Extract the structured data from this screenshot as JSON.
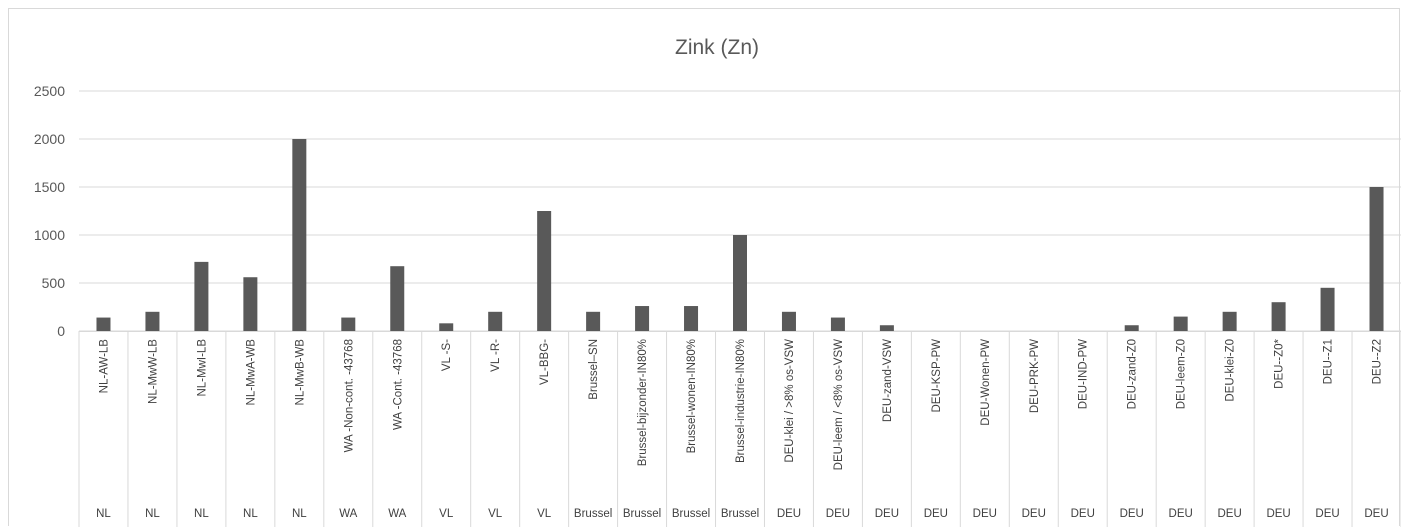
{
  "chart_data": {
    "type": "bar",
    "title": "Zink (Zn)",
    "xlabel": "",
    "ylabel": "",
    "ylim": [
      0,
      2500
    ],
    "yticks": [
      "0",
      "500",
      "1000",
      "1500",
      "2000",
      "2500"
    ],
    "grid": true,
    "legend": "none",
    "bar_color": "#595959",
    "gridline_color": "#d9d9d9",
    "categories": [
      "NL-AW-LB",
      "NL-MwW-LB",
      "NL-MwI-LB",
      "NL-MwA-WB",
      "NL-MwB-WB",
      "WA -Non-cont. -43768",
      "WA -Cont. -43768",
      "VL -S-",
      "VL -R-",
      "VL-BBG-",
      "Brussel–SN",
      "Brussel-bijzonder-IN80%",
      "Brussel-wonen-IN80%",
      "Brussel-industrie-IN80%",
      "DEU-klei / >8% os-VSW",
      "DEU-leem / <8% os-VSW",
      "DEU-zand-VSW",
      "DEU-KSP-PW",
      "DEU-Wonen-PW",
      "DEU-PRK-PW",
      "DEU-IND-PW",
      "DEU-zand-Z0",
      "DEU-leem-Z0",
      "DEU-klei-Z0",
      "DEU--Z0*",
      "DEU--Z1",
      "DEU--Z2"
    ],
    "groups": [
      "NL",
      "NL",
      "NL",
      "NL",
      "NL",
      "WA",
      "WA",
      "VL",
      "VL",
      "VL",
      "Brussel",
      "Brussel",
      "Brussel",
      "Brussel",
      "DEU",
      "DEU",
      "DEU",
      "DEU",
      "DEU",
      "DEU",
      "DEU",
      "DEU",
      "DEU",
      "DEU",
      "DEU",
      "DEU",
      "DEU"
    ],
    "values": [
      140,
      200,
      720,
      560,
      2000,
      140,
      675,
      80,
      200,
      1250,
      200,
      260,
      260,
      1000,
      200,
      140,
      60,
      0,
      0,
      0,
      0,
      60,
      150,
      200,
      300,
      450,
      1500
    ]
  }
}
